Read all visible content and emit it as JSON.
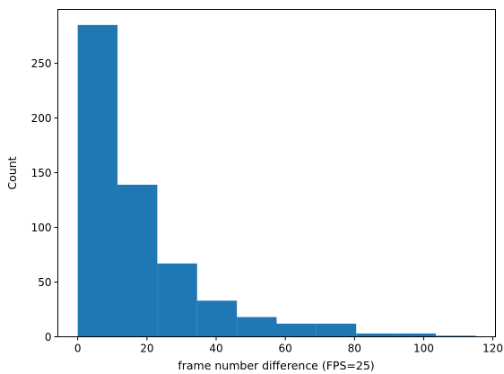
{
  "chart_data": {
    "type": "bar",
    "subtype": "histogram",
    "title": "",
    "xlabel": "frame number difference (FPS=25)",
    "ylabel": "Count",
    "xlim": [
      -5.75,
      120.75
    ],
    "ylim": [
      0,
      299.25
    ],
    "xticks": [
      0,
      20,
      40,
      60,
      80,
      100,
      120
    ],
    "yticks": [
      0,
      50,
      100,
      150,
      200,
      250
    ],
    "bins": [
      {
        "x0": 0,
        "x1": 11.5,
        "value": 285
      },
      {
        "x0": 11.5,
        "x1": 23,
        "value": 139
      },
      {
        "x0": 23,
        "x1": 34.5,
        "value": 67
      },
      {
        "x0": 34.5,
        "x1": 46,
        "value": 33
      },
      {
        "x0": 46,
        "x1": 57.5,
        "value": 18
      },
      {
        "x0": 57.5,
        "x1": 69,
        "value": 12
      },
      {
        "x0": 69,
        "x1": 80.5,
        "value": 12
      },
      {
        "x0": 80.5,
        "x1": 92,
        "value": 3
      },
      {
        "x0": 92,
        "x1": 103.5,
        "value": 3
      },
      {
        "x0": 103.5,
        "x1": 115,
        "value": 1
      }
    ],
    "bar_color": "#1f77b4",
    "grid": false,
    "legend": "none"
  }
}
